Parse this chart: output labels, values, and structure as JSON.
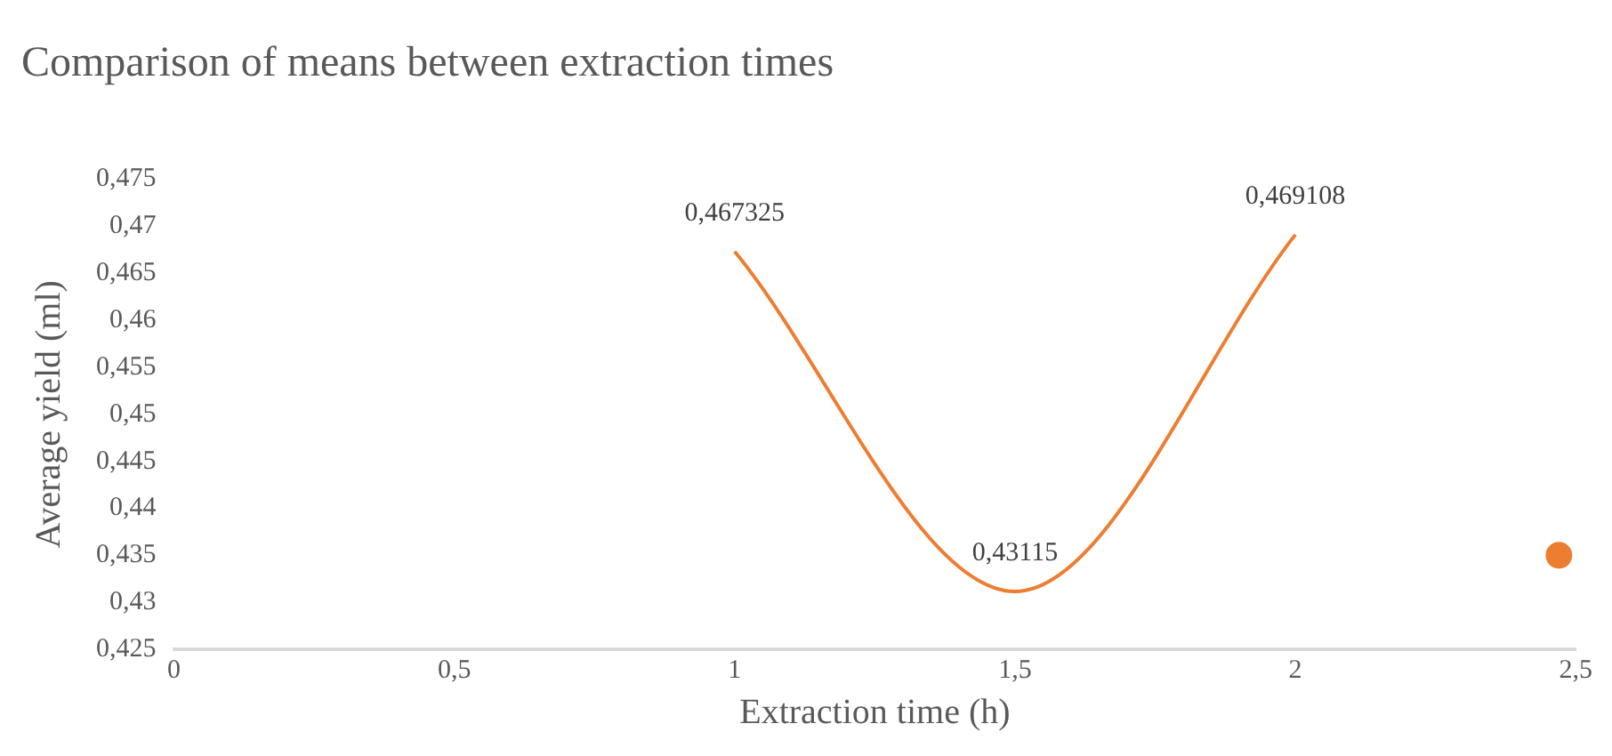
{
  "chart_data": {
    "type": "line",
    "title": "Comparison of means between extraction times",
    "xlabel": "Extraction time (h)",
    "ylabel": "Average yield (ml)",
    "xlim": [
      0,
      2.5
    ],
    "xticks": [
      0,
      {
        "value": 0.5,
        "label": "0,5"
      },
      1,
      {
        "value": 1.5,
        "label": "1,5"
      },
      2,
      {
        "value": 2.5,
        "label": "2,5"
      }
    ],
    "ylim": [
      0.425,
      0.475
    ],
    "yticks": [
      {
        "value": 0.425,
        "label": "0,425"
      },
      {
        "value": 0.43,
        "label": "0,43"
      },
      {
        "value": 0.435,
        "label": "0,435"
      },
      {
        "value": 0.44,
        "label": "0,44"
      },
      {
        "value": 0.445,
        "label": "0,445"
      },
      {
        "value": 0.45,
        "label": "0,45"
      },
      {
        "value": 0.455,
        "label": "0,455"
      },
      {
        "value": 0.46,
        "label": "0,46"
      },
      {
        "value": 0.465,
        "label": "0,465"
      },
      {
        "value": 0.47,
        "label": "0,47"
      },
      {
        "value": 0.475,
        "label": "0,475"
      }
    ],
    "grid": false,
    "legend": false,
    "line_style": "solid",
    "series": [
      {
        "color": "#ed7d31",
        "x": [
          1,
          1.5,
          2
        ],
        "values": [
          0.467325,
          0.43115,
          0.469108
        ],
        "value_labels": [
          "0,467325",
          "0,43115",
          "0,469108"
        ]
      },
      {
        "type": "scatter",
        "color": "#ed7d31",
        "x": [
          2.47
        ],
        "values": [
          0.435
        ]
      }
    ]
  }
}
